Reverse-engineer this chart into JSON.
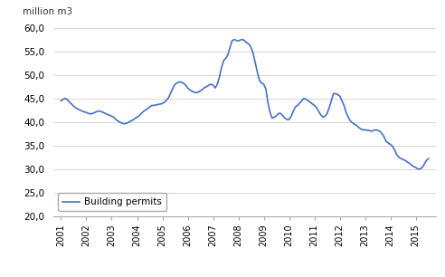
{
  "ylabel": "million m3",
  "line_color": "#4472C4",
  "line_width": 1.2,
  "legend_label": "Building permits",
  "ylim": [
    20.0,
    60.0
  ],
  "yticks": [
    20.0,
    25.0,
    30.0,
    35.0,
    40.0,
    45.0,
    50.0,
    55.0,
    60.0
  ],
  "xtick_labels": [
    "2001",
    "2002",
    "2003",
    "2004",
    "2005",
    "2006",
    "2007",
    "2008",
    "2009",
    "2010",
    "2011",
    "2012",
    "2013",
    "2014",
    "2015"
  ],
  "background_color": "#ffffff",
  "x": [
    0,
    0.083,
    0.167,
    0.25,
    0.333,
    0.417,
    0.5,
    0.583,
    0.667,
    0.75,
    0.833,
    0.917,
    1,
    1.083,
    1.167,
    1.25,
    1.333,
    1.417,
    1.5,
    1.583,
    1.667,
    1.75,
    1.833,
    1.917,
    2,
    2.083,
    2.167,
    2.25,
    2.333,
    2.417,
    2.5,
    2.583,
    2.667,
    2.75,
    2.833,
    2.917,
    3,
    3.083,
    3.167,
    3.25,
    3.333,
    3.417,
    3.5,
    3.583,
    3.667,
    3.75,
    3.833,
    3.917,
    4,
    4.083,
    4.167,
    4.25,
    4.333,
    4.417,
    4.5,
    4.583,
    4.667,
    4.75,
    4.833,
    4.917,
    5,
    5.083,
    5.167,
    5.25,
    5.333,
    5.417,
    5.5,
    5.583,
    5.667,
    5.75,
    5.833,
    5.917,
    6,
    6.083,
    6.167,
    6.25,
    6.333,
    6.417,
    6.5,
    6.583,
    6.667,
    6.75,
    6.833,
    6.917,
    7,
    7.083,
    7.167,
    7.25,
    7.333,
    7.417,
    7.5,
    7.583,
    7.667,
    7.75,
    7.833,
    7.917,
    8,
    8.083,
    8.167,
    8.25,
    8.333,
    8.417,
    8.5,
    8.583,
    8.667,
    8.75,
    8.833,
    8.917,
    9,
    9.083,
    9.167,
    9.25,
    9.333,
    9.417,
    9.5,
    9.583,
    9.667,
    9.75,
    9.833,
    9.917,
    10,
    10.083,
    10.167,
    10.25,
    10.333,
    10.417,
    10.5,
    10.583,
    10.667,
    10.75,
    10.833,
    10.917,
    11,
    11.083,
    11.167,
    11.25,
    11.333,
    11.417,
    11.5,
    11.583,
    11.667,
    11.75,
    11.833,
    11.917,
    12,
    12.083,
    12.167,
    12.25,
    12.333,
    12.417,
    12.5,
    12.583,
    12.667,
    12.75,
    12.833,
    12.917,
    13,
    13.083,
    13.167,
    13.25,
    13.333,
    13.417,
    13.5,
    13.583,
    13.667,
    13.75,
    13.833,
    13.917,
    14,
    14.083,
    14.167,
    14.25,
    14.333,
    14.417,
    14.5
  ],
  "y": [
    44.5,
    44.8,
    45.0,
    44.7,
    44.2,
    43.8,
    43.3,
    43.0,
    42.7,
    42.5,
    42.3,
    42.1,
    42.0,
    41.8,
    41.7,
    41.8,
    42.0,
    42.2,
    42.3,
    42.2,
    42.0,
    41.8,
    41.6,
    41.4,
    41.2,
    41.0,
    40.5,
    40.2,
    39.9,
    39.7,
    39.6,
    39.7,
    39.9,
    40.2,
    40.4,
    40.7,
    41.0,
    41.3,
    41.8,
    42.2,
    42.5,
    42.8,
    43.2,
    43.5,
    43.5,
    43.6,
    43.7,
    43.8,
    43.9,
    44.2,
    44.6,
    45.2,
    46.2,
    47.2,
    48.0,
    48.3,
    48.5,
    48.4,
    48.2,
    47.8,
    47.2,
    46.8,
    46.5,
    46.3,
    46.2,
    46.3,
    46.6,
    46.9,
    47.3,
    47.5,
    47.8,
    48.0,
    47.8,
    47.2,
    48.0,
    49.5,
    51.5,
    53.0,
    53.5,
    54.2,
    55.8,
    57.2,
    57.5,
    57.3,
    57.2,
    57.4,
    57.5,
    57.2,
    56.8,
    56.5,
    55.8,
    54.5,
    52.5,
    50.5,
    48.8,
    48.2,
    48.0,
    47.0,
    44.0,
    42.0,
    40.8,
    41.0,
    41.3,
    41.8,
    41.8,
    41.3,
    40.8,
    40.5,
    40.5,
    41.2,
    42.3,
    43.2,
    43.5,
    44.0,
    44.5,
    45.0,
    44.8,
    44.5,
    44.2,
    43.8,
    43.5,
    43.0,
    42.2,
    41.5,
    41.0,
    41.2,
    41.8,
    43.0,
    44.5,
    46.0,
    46.0,
    45.8,
    45.5,
    44.5,
    43.5,
    42.0,
    41.0,
    40.2,
    39.8,
    39.5,
    39.2,
    38.8,
    38.5,
    38.3,
    38.3,
    38.2,
    38.2,
    38.0,
    38.2,
    38.3,
    38.2,
    38.0,
    37.5,
    36.8,
    35.8,
    35.5,
    35.2,
    34.8,
    34.0,
    33.0,
    32.5,
    32.2,
    32.0,
    31.8,
    31.5,
    31.2,
    30.8,
    30.5,
    30.3,
    30.0,
    30.0,
    30.3,
    31.0,
    31.8,
    32.2
  ]
}
